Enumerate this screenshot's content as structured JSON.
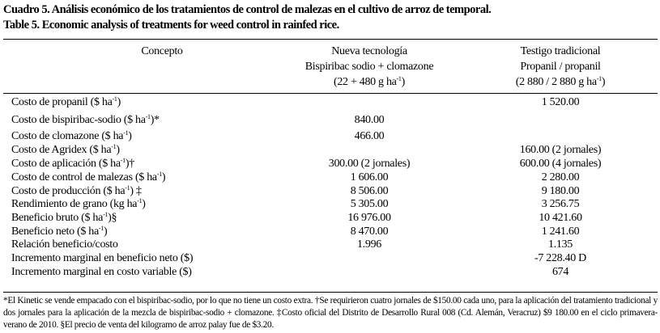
{
  "title_es": "Cuadro 5. Análisis económico de los tratamientos de control de malezas en el cultivo de arroz de temporal.",
  "title_en": "Table 5. Economic analysis of treatments for weed control in rainfed rice.",
  "header": {
    "concept": "Concepto",
    "col2": [
      "Nueva tecnología",
      "Bispiribac sodio + clomazone",
      "(22 + 480 g ha",
      "-1",
      ")"
    ],
    "col3": [
      "Testigo tradicional",
      "Propanil / propanil",
      "(2 880 / 2 880 g ha",
      "-1",
      ")"
    ]
  },
  "rows": [
    {
      "label": "Costo de propanil ($ ha",
      "sup": "-1",
      "after": ")",
      "v1": "",
      "v2": "1 520.00"
    },
    {
      "label": "Costo de bispiribac-sodio ($ ha",
      "sup": "-1",
      "after": ")*",
      "v1": "840.00",
      "v2": ""
    },
    {
      "label": "Costo de clomazone ($ ha",
      "sup": "-1",
      "after": ")",
      "v1": "466.00",
      "v2": ""
    },
    {
      "label": "Costo de Agridex ($ ha",
      "sup": "-1",
      "after": ")",
      "v1": "",
      "v2": "160.00 (2 jornales)"
    },
    {
      "label": "Costo de aplicación ($ ha",
      "sup": "-1",
      "after": ")†",
      "v1": "300.00 (2 jornales)",
      "v2": "600.00 (4 jornales)"
    },
    {
      "label": "Costo de control de malezas ($ ha",
      "sup": "-1",
      "after": ")",
      "v1": "1 606.00",
      "v2": "2 280.00"
    },
    {
      "label": "Costo de producción ($ ha",
      "sup": "-1",
      "after": ") ‡",
      "v1": "8 506.00",
      "v2": "9 180.00"
    },
    {
      "label": "Rendimiento de grano (kg ha",
      "sup": "-1",
      "after": ")",
      "v1": "5 305.00",
      "v2": "3 256.75"
    },
    {
      "label": "Beneficio bruto ($ ha",
      "sup": "-1",
      "after": ")§",
      "v1": "16 976.00",
      "v2": "10 421.60"
    },
    {
      "label": "Beneficio neto ($ ha",
      "sup": "-1",
      "after": ")",
      "v1": "8 470.00",
      "v2": "1 241.60"
    },
    {
      "label": "Relación beneficio/costo",
      "sup": "",
      "after": "",
      "v1": "1.996",
      "v2": "1.135"
    },
    {
      "label": "Incremento marginal en beneficio neto ($)",
      "sup": "",
      "after": "",
      "v1": "",
      "v2": "-7 228.40 D"
    },
    {
      "label": "Incremento marginal en costo variable ($)",
      "sup": "",
      "after": "",
      "v1": "",
      "v2": "674"
    }
  ],
  "footnote": "*El Kinetic se vende empacado con el bispiribac-sodio, por lo que no tiene un costo extra. †Se requirieron cuatro jornales de $150.00 cada uno, para la aplicación del tratamiento tradicional y dos jornales para la aplicación de la mezcla de bispiribac-sodio + clomazone. ‡Costo oficial del Distrito de Desarrollo Rural 008 (Cd. Alemán, Veracruz) $9 180.00 en el ciclo primavera-verano de 2010. §El precio de venta del kilogramo de arroz palay fue de $3.20."
}
